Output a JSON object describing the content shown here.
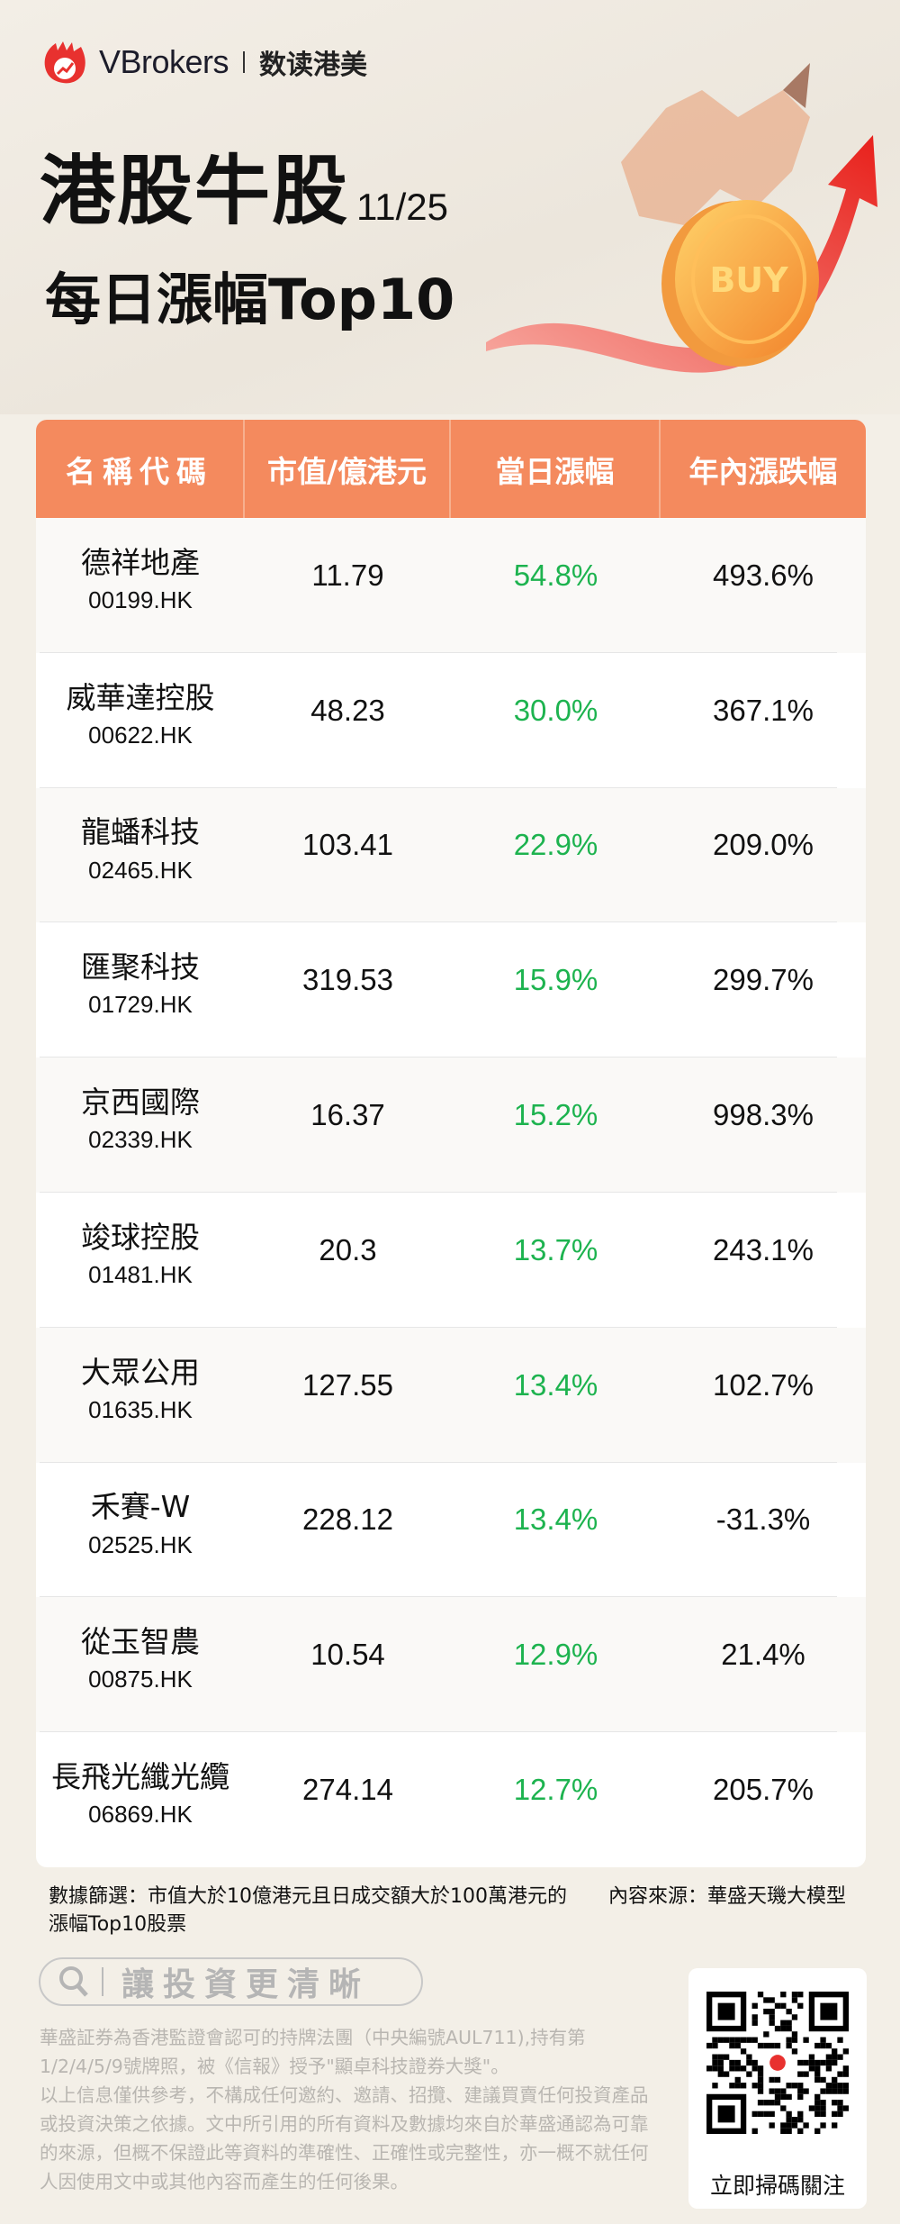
{
  "header": {
    "brand": "VBrokers",
    "brand_sub": "数读港美",
    "title": "港股牛股",
    "date": "11/25",
    "subtitle": "每日漲幅Top10",
    "coin_label": "BUY"
  },
  "colors": {
    "header_bg": "#f48a5e",
    "up": "#1db34f",
    "brand_red": "#e8312f"
  },
  "table": {
    "columns": [
      "名稱代碼",
      "市值/億港元",
      "當日漲幅",
      "年內漲跌幅"
    ],
    "rows": [
      {
        "name": "德祥地產",
        "code": "00199.HK",
        "mcap": "11.79",
        "day": "54.8%",
        "ytd": "493.6%"
      },
      {
        "name": "威華達控股",
        "code": "00622.HK",
        "mcap": "48.23",
        "day": "30.0%",
        "ytd": "367.1%"
      },
      {
        "name": "龍蟠科技",
        "code": "02465.HK",
        "mcap": "103.41",
        "day": "22.9%",
        "ytd": "209.0%"
      },
      {
        "name": "匯聚科技",
        "code": "01729.HK",
        "mcap": "319.53",
        "day": "15.9%",
        "ytd": "299.7%"
      },
      {
        "name": "京西國際",
        "code": "02339.HK",
        "mcap": "16.37",
        "day": "15.2%",
        "ytd": "998.3%"
      },
      {
        "name": "竣球控股",
        "code": "01481.HK",
        "mcap": "20.3",
        "day": "13.7%",
        "ytd": "243.1%"
      },
      {
        "name": "大眾公用",
        "code": "01635.HK",
        "mcap": "127.55",
        "day": "13.4%",
        "ytd": "102.7%"
      },
      {
        "name": "禾賽-W",
        "code": "02525.HK",
        "mcap": "228.12",
        "day": "13.4%",
        "ytd": "-31.3%"
      },
      {
        "name": "從玉智農",
        "code": "00875.HK",
        "mcap": "10.54",
        "day": "12.9%",
        "ytd": "21.4%"
      },
      {
        "name": "長飛光纖光纜",
        "code": "06869.HK",
        "mcap": "274.14",
        "day": "12.7%",
        "ytd": "205.7%"
      }
    ]
  },
  "footer": {
    "filter_note": "數據篩選：市值大於10億港元且日成交額大於100萬港元的漲幅Top10股票",
    "source_note": "內容來源：華盛天璣大模型",
    "search_text": "讓投資更清晰",
    "disclaimer_1": "華盛証券為香港監證會認可的持牌法團（中央編號AUL711),持有第1/2/4/5/9號牌照，被《信報》授予\"顯卓科技證券大獎\"。",
    "disclaimer_2": "以上信息僅供參考，不構成任何邀約、邀請、招攬、建議買賣任何投資產品或投資決策之依據。文中所引用的所有資料及數據均來自於華盛通認為可靠的來源，但概不保證此等資料的準確性、正確性或完整性，亦一概不就任何人因使用文中或其他內容而產生的任何後果。",
    "qr_label": "立即掃碼關注"
  }
}
